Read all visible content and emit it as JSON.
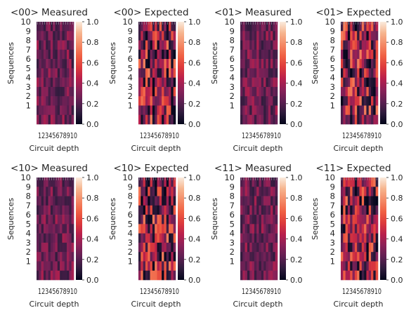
{
  "colorbar_ticks": [
    "0.0",
    "0.2",
    "0.4",
    "0.6",
    "0.8",
    "1.0"
  ],
  "colormap": "rocket",
  "colormap_stops": [
    "#03051a",
    "#2e1b3c",
    "#5e1f52",
    "#8a2158",
    "#b81f4c",
    "#dd3a3b",
    "#f06043",
    "#f48a66",
    "#f6b48e",
    "#faebdd"
  ],
  "chart_data": [
    {
      "type": "heatmap",
      "title": "<00> Measured",
      "xlabel": "Circuit depth",
      "ylabel": "Sequences",
      "ytick_labels": [
        "10",
        "9",
        "8",
        "7",
        "6",
        "5",
        "4",
        "3",
        "2",
        "1"
      ],
      "xtick_text": "12345678910",
      "colorbar_range": [
        0,
        1
      ],
      "n_rows": 11,
      "n_cols": 16,
      "value_range": [
        0.12,
        0.42
      ],
      "seed": 11
    },
    {
      "type": "heatmap",
      "title": "<00> Expected",
      "xlabel": "Circuit depth",
      "ylabel": "Sequences",
      "ytick_labels": [
        "10",
        "9",
        "8",
        "7",
        "6",
        "5",
        "4",
        "3",
        "2",
        "1"
      ],
      "xtick_text": "12345678910",
      "colorbar_range": [
        0,
        1
      ],
      "n_rows": 11,
      "n_cols": 16,
      "value_range": [
        0.0,
        0.75
      ],
      "seed": 23
    },
    {
      "type": "heatmap",
      "title": "<01> Measured",
      "xlabel": "Circuit depth",
      "ylabel": "Sequences",
      "ytick_labels": [
        "10",
        "9",
        "8",
        "7",
        "6",
        "5",
        "4",
        "3",
        "2",
        "1"
      ],
      "xtick_text": "12345678910",
      "colorbar_range": [
        0,
        1
      ],
      "n_rows": 11,
      "n_cols": 16,
      "value_range": [
        0.12,
        0.42
      ],
      "seed": 37
    },
    {
      "type": "heatmap",
      "title": "<01> Expected",
      "xlabel": "Circuit depth",
      "ylabel": "Sequences",
      "ytick_labels": [
        "10",
        "9",
        "8",
        "7",
        "6",
        "5",
        "4",
        "3",
        "2",
        "1"
      ],
      "xtick_text": "12345678910",
      "colorbar_range": [
        0,
        1
      ],
      "n_rows": 11,
      "n_cols": 16,
      "value_range": [
        0.0,
        0.75
      ],
      "seed": 41
    },
    {
      "type": "heatmap",
      "title": "<10> Measured",
      "xlabel": "Circuit depth",
      "ylabel": "Sequences",
      "ytick_labels": [
        "10",
        "9",
        "8",
        "7",
        "6",
        "5",
        "4",
        "3",
        "2",
        "1"
      ],
      "xtick_text": "12345678910",
      "colorbar_range": [
        0,
        1
      ],
      "n_rows": 11,
      "n_cols": 16,
      "value_range": [
        0.12,
        0.42
      ],
      "seed": 53
    },
    {
      "type": "heatmap",
      "title": "<10> Expected",
      "xlabel": "Circuit depth",
      "ylabel": "Sequences",
      "ytick_labels": [
        "10",
        "9",
        "8",
        "7",
        "6",
        "5",
        "4",
        "3",
        "2",
        "1"
      ],
      "xtick_text": "12345678910",
      "colorbar_range": [
        0,
        1
      ],
      "n_rows": 11,
      "n_cols": 16,
      "value_range": [
        0.0,
        0.75
      ],
      "seed": 67
    },
    {
      "type": "heatmap",
      "title": "<11> Measured",
      "xlabel": "Circuit depth",
      "ylabel": "Sequences",
      "ytick_labels": [
        "10",
        "9",
        "8",
        "7",
        "6",
        "5",
        "4",
        "3",
        "2",
        "1"
      ],
      "xtick_text": "12345678910",
      "colorbar_range": [
        0,
        1
      ],
      "n_rows": 11,
      "n_cols": 16,
      "value_range": [
        0.12,
        0.42
      ],
      "seed": 79
    },
    {
      "type": "heatmap",
      "title": "<11> Expected",
      "xlabel": "Circuit depth",
      "ylabel": "Sequences",
      "ytick_labels": [
        "10",
        "9",
        "8",
        "7",
        "6",
        "5",
        "4",
        "3",
        "2",
        "1"
      ],
      "xtick_text": "12345678910",
      "colorbar_range": [
        0,
        1
      ],
      "n_rows": 11,
      "n_cols": 16,
      "value_range": [
        0.0,
        0.75
      ],
      "seed": 83
    }
  ]
}
